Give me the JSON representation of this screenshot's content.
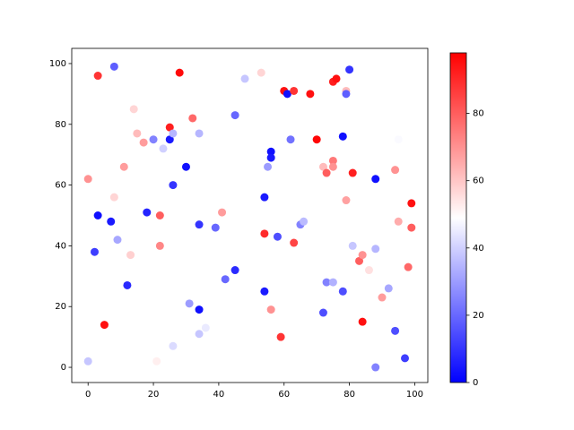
{
  "chart_data": {
    "type": "scatter",
    "x": [
      0,
      3,
      8,
      3,
      2,
      0,
      7,
      8,
      9,
      5,
      11,
      12,
      13,
      14,
      15,
      17,
      18,
      20,
      21,
      22,
      22,
      23,
      25,
      25,
      26,
      26,
      26,
      28,
      30,
      31,
      32,
      34,
      34,
      34,
      34,
      36,
      39,
      41,
      42,
      45,
      45,
      48,
      53,
      54,
      54,
      54,
      55,
      56,
      56,
      56,
      58,
      59,
      60,
      61,
      62,
      63,
      63,
      65,
      66,
      68,
      70,
      72,
      72,
      73,
      73,
      75,
      75,
      75,
      75,
      76,
      78,
      78,
      79,
      79,
      79,
      80,
      81,
      81,
      83,
      84,
      84,
      86,
      88,
      88,
      88,
      90,
      92,
      94,
      94,
      95,
      95,
      97,
      98,
      99,
      99
    ],
    "y": [
      2,
      96,
      99,
      50,
      38,
      62,
      48,
      56,
      42,
      14,
      66,
      27,
      37,
      85,
      77,
      74,
      51,
      75,
      2,
      50,
      40,
      72,
      79,
      75,
      77,
      60,
      7,
      97,
      66,
      21,
      82,
      77,
      47,
      19,
      11,
      13,
      46,
      51,
      29,
      83,
      32,
      95,
      97,
      56,
      44,
      25,
      66,
      71,
      69,
      19,
      43,
      10,
      91,
      90,
      75,
      91,
      41,
      47,
      48,
      90,
      75,
      66,
      18,
      64,
      28,
      94,
      68,
      66,
      28,
      95,
      76,
      25,
      91,
      90,
      55,
      98,
      64,
      40,
      35,
      37,
      15,
      32,
      62,
      39,
      0,
      23,
      26,
      12,
      65,
      75,
      48,
      3,
      33,
      54,
      46
    ],
    "c": [
      38,
      88,
      18,
      3,
      12,
      70,
      5,
      57,
      32,
      95,
      68,
      8,
      58,
      57,
      62,
      68,
      7,
      25,
      52,
      80,
      72,
      40,
      92,
      5,
      35,
      10,
      42,
      96,
      3,
      30,
      78,
      35,
      10,
      3,
      38,
      45,
      20,
      68,
      20,
      20,
      8,
      38,
      57,
      5,
      90,
      5,
      30,
      3,
      5,
      70,
      15,
      88,
      95,
      3,
      22,
      88,
      85,
      25,
      36,
      95,
      97,
      62,
      15,
      80,
      25,
      92,
      75,
      70,
      34,
      95,
      3,
      15,
      62,
      18,
      67,
      10,
      92,
      38,
      80,
      70,
      95,
      55,
      3,
      35,
      25,
      68,
      32,
      15,
      70,
      48,
      65,
      12,
      78,
      95,
      80
    ],
    "xlim": [
      -5,
      104
    ],
    "ylim": [
      -5,
      105
    ],
    "xticks": [
      0,
      20,
      40,
      60,
      80,
      100
    ],
    "yticks": [
      0,
      20,
      40,
      60,
      80,
      100
    ],
    "colormap": "bwr",
    "clim": [
      0,
      98
    ],
    "cticks": [
      0,
      20,
      40,
      60,
      80
    ]
  }
}
